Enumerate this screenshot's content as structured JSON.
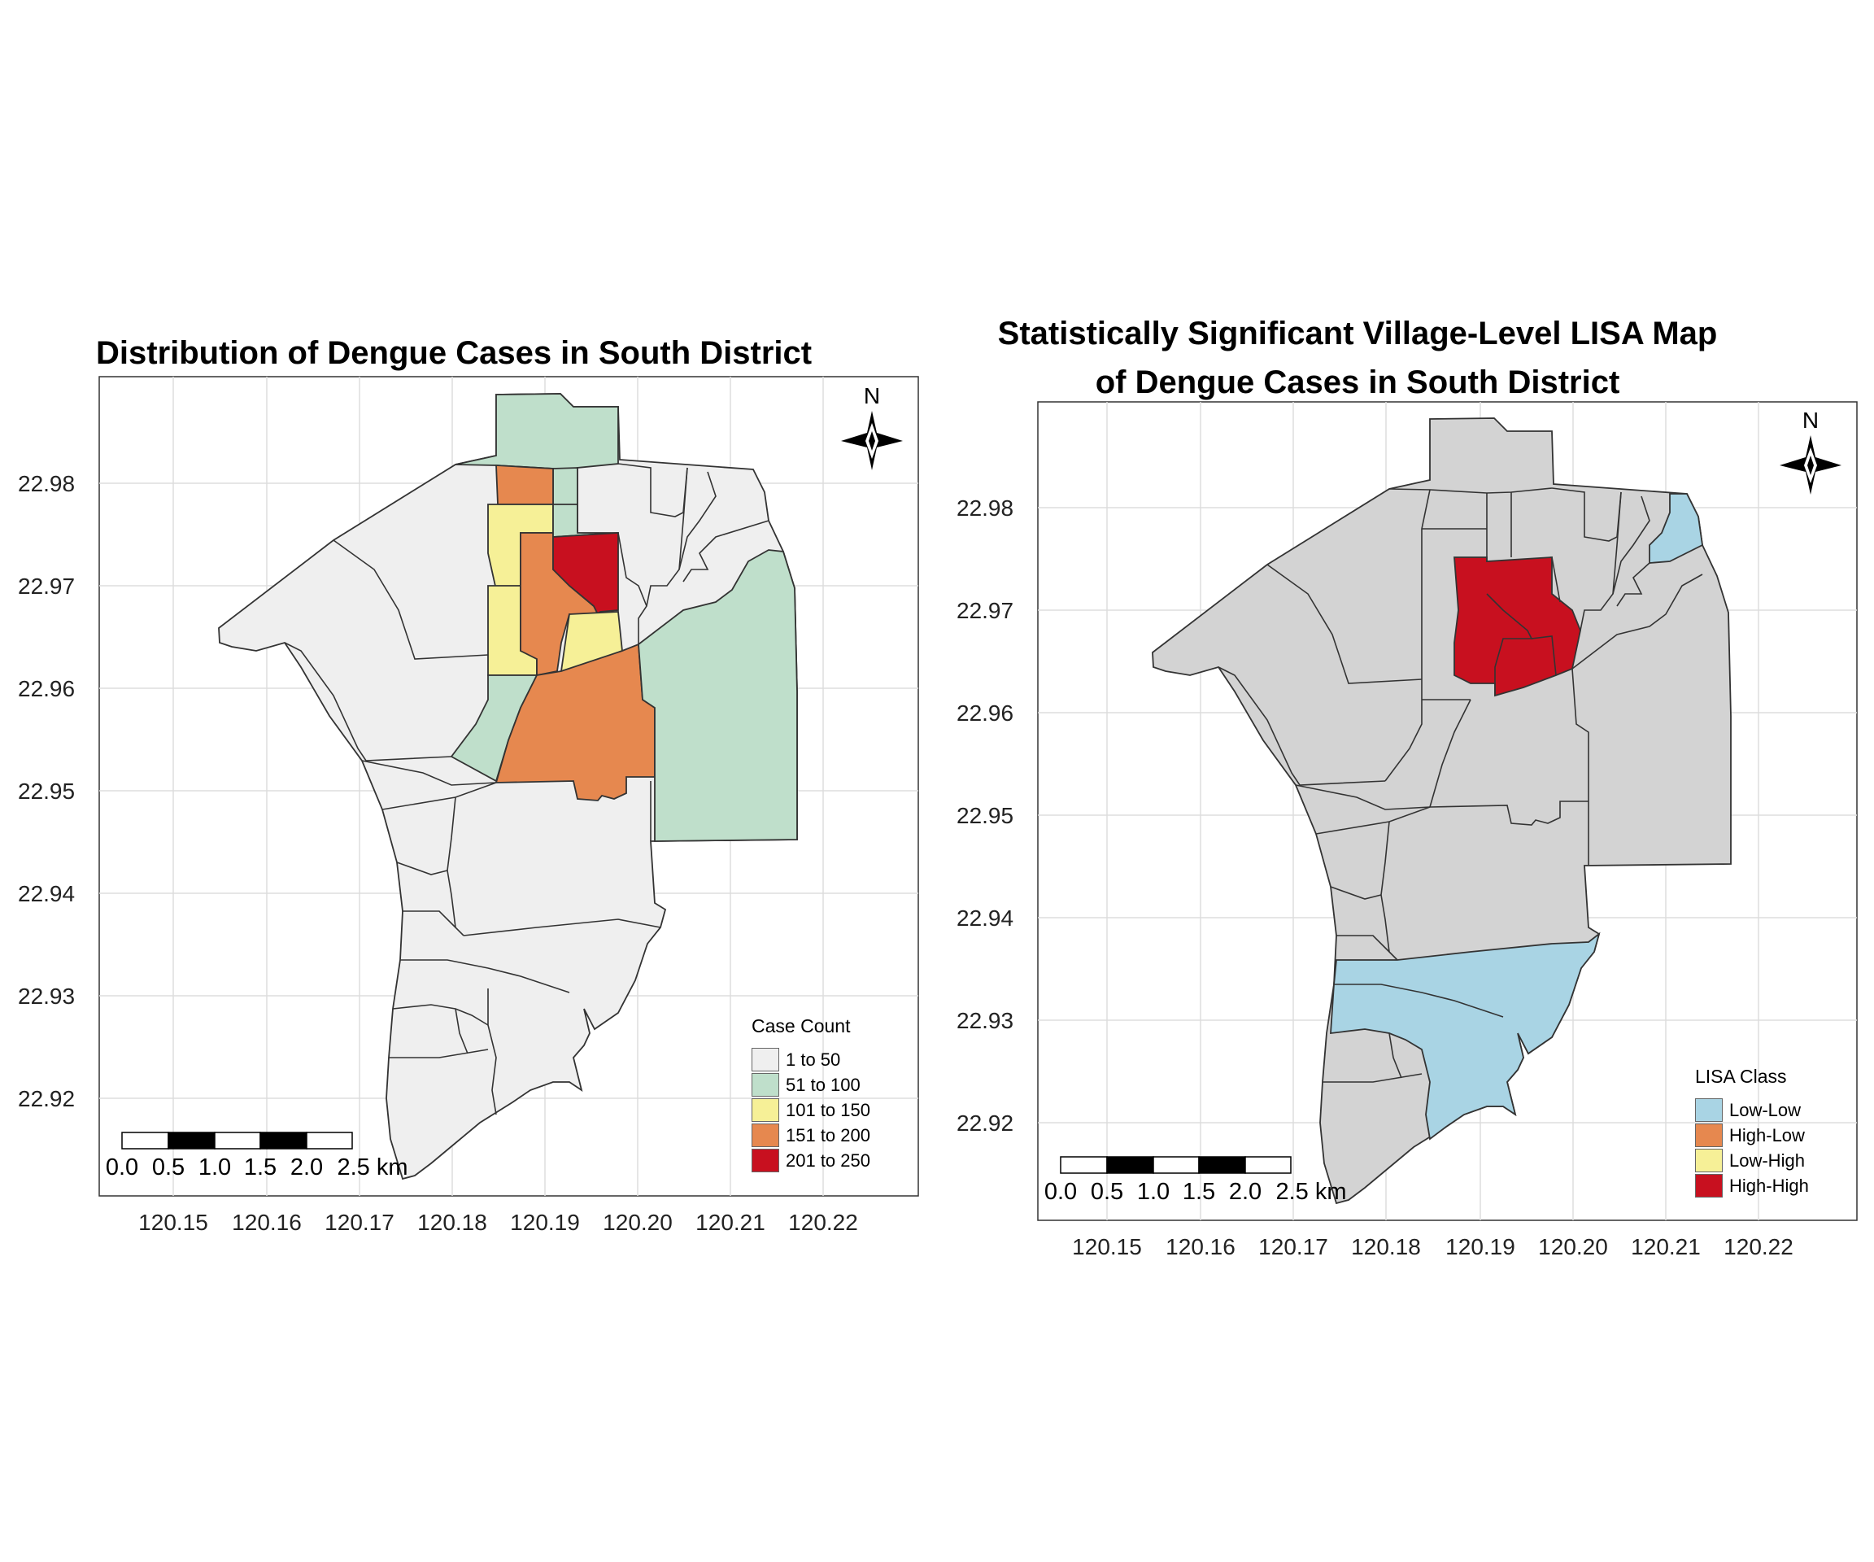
{
  "left": {
    "title": "Distribution of Dengue Cases in South District",
    "y_ticks": [
      "22.98",
      "22.97",
      "22.96",
      "22.95",
      "22.94",
      "22.93",
      "22.92"
    ],
    "x_ticks": [
      "120.15",
      "120.16",
      "120.17",
      "120.18",
      "120.19",
      "120.20",
      "120.21",
      "120.22"
    ],
    "north_label": "N",
    "scale_labels": [
      "0.0",
      "0.5",
      "1.0",
      "1.5",
      "2.0",
      "2.5 km"
    ],
    "legend": {
      "title": "Case Count",
      "items": [
        {
          "label": "1 to 50",
          "color": "#efefef"
        },
        {
          "label": "51 to 100",
          "color": "#bfdfcb"
        },
        {
          "label": "101 to 150",
          "color": "#f6f097"
        },
        {
          "label": "151 to 200",
          "color": "#e6884f"
        },
        {
          "label": "201 to 250",
          "color": "#c8101f"
        }
      ]
    }
  },
  "right": {
    "title_line1": "Statistically Significant Village-Level LISA Map",
    "title_line2": "of Dengue Cases in South District",
    "y_ticks": [
      "22.98",
      "22.97",
      "22.96",
      "22.95",
      "22.94",
      "22.93",
      "22.92"
    ],
    "x_ticks": [
      "120.15",
      "120.16",
      "120.17",
      "120.18",
      "120.19",
      "120.20",
      "120.21",
      "120.22"
    ],
    "north_label": "N",
    "scale_labels": [
      "0.0",
      "0.5",
      "1.0",
      "1.5",
      "2.0",
      "2.5 km"
    ],
    "legend": {
      "title": "LISA Class",
      "items": [
        {
          "label": "Low-Low",
          "color": "#a9d4e4"
        },
        {
          "label": "High-Low",
          "color": "#e6884f"
        },
        {
          "label": "Low-High",
          "color": "#f6f097"
        },
        {
          "label": "High-High",
          "color": "#c8101f"
        }
      ]
    }
  },
  "colors": {
    "base_gray": "#d3d3d3",
    "light_gray": "#efefef",
    "border": "#333333"
  }
}
